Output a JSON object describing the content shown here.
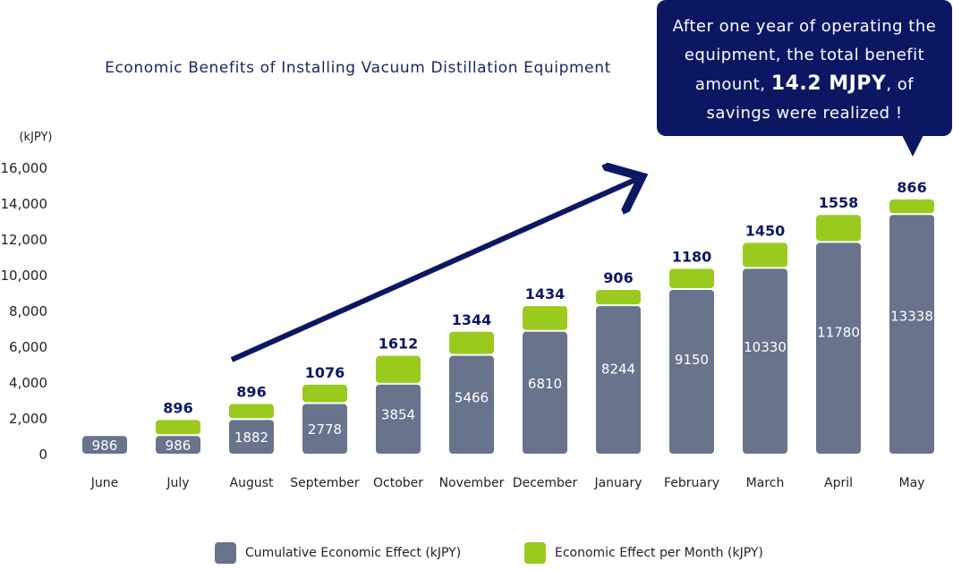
{
  "chart_data": {
    "type": "bar",
    "stacked": true,
    "title": "Economic Benefits of Installing Vacuum Distillation Equipment",
    "ylabel": "(kJPY)",
    "xlabel": "",
    "ylim": [
      0,
      16000
    ],
    "yticks": [
      "0",
      "2,000",
      "4,000",
      "6,000",
      "8,000",
      "10,000",
      "12,000",
      "14,000",
      "16,000"
    ],
    "grid": false,
    "categories": [
      "June",
      "July",
      "August",
      "September",
      "October",
      "November",
      "December",
      "January",
      "February",
      "March",
      "April",
      "May"
    ],
    "series": [
      {
        "name": "Cumulative Economic Effect (kJPY)",
        "color": "#68738c",
        "values": [
          986,
          986,
          1882,
          2778,
          3854,
          5466,
          6810,
          8244,
          9150,
          10330,
          11780,
          13338
        ]
      },
      {
        "name": "Economic Effect per Month (kJPY)",
        "color": "#9bca1e",
        "values": [
          null,
          896,
          896,
          1076,
          1612,
          1344,
          1434,
          906,
          1180,
          1450,
          1558,
          866
        ]
      }
    ],
    "legend_position": "bottom",
    "annotation": {
      "line1": "After one year of operating the",
      "line2": "equipment, the total benefit",
      "line3_pre": "amount,",
      "line3_strong": "14.2 MJPY",
      "line3_post": ", of",
      "line4": "savings were realized !"
    }
  },
  "colors": {
    "title": "#1b2660",
    "top_label": "#0c1764",
    "arrow": "#0c1764",
    "callout_bg": "#0c1764",
    "axis_text": "#222222"
  }
}
